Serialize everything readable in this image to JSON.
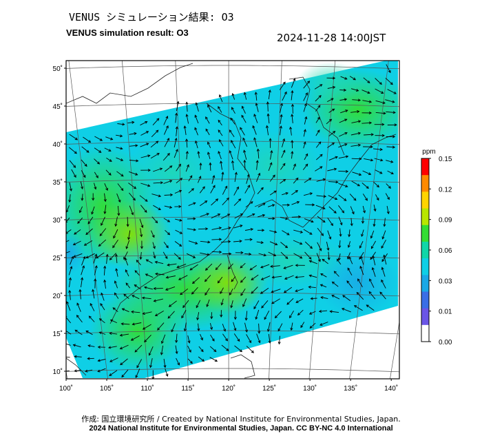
{
  "title_ja": "VENUS シミュレーション結果: O3",
  "title_en": "VENUS simulation result: O3",
  "timestamp": "2024-11-28 14:00JST",
  "map": {
    "lat_labels": [
      "50˚",
      "45˚",
      "40˚",
      "35˚",
      "30˚",
      "25˚",
      "20˚",
      "15˚",
      "10˚"
    ],
    "lat_values": [
      50,
      45,
      40,
      35,
      30,
      25,
      20,
      15,
      10
    ],
    "lon_labels": [
      "100˚",
      "105˚",
      "110˚",
      "115˚",
      "120˚",
      "125˚",
      "130˚",
      "135˚",
      "140˚"
    ],
    "lon_values": [
      100,
      105,
      110,
      115,
      120,
      125,
      130,
      135,
      140
    ],
    "lat_range": [
      9,
      51
    ],
    "lon_range": [
      100,
      141
    ]
  },
  "colorbar": {
    "unit": "ppm",
    "ticks": [
      "0.15",
      "0.12",
      "0.09",
      "0.06",
      "0.03",
      "0.01",
      "0.00"
    ],
    "colors": [
      "#ff0000",
      "#ff8a00",
      "#ffd400",
      "#b8e600",
      "#33dd33",
      "#11d6a8",
      "#0fcfe6",
      "#1aa8e6",
      "#3a6ee6",
      "#6a55e6",
      "#ffffff"
    ]
  },
  "credit_ja": "作成: 国立環境研究所 / Created by National Institute for Environmental Studies, Japan.",
  "credit_en": "2024 National Institute for Environmental Studies, Japan. CC BY-NC 4.0 International"
}
